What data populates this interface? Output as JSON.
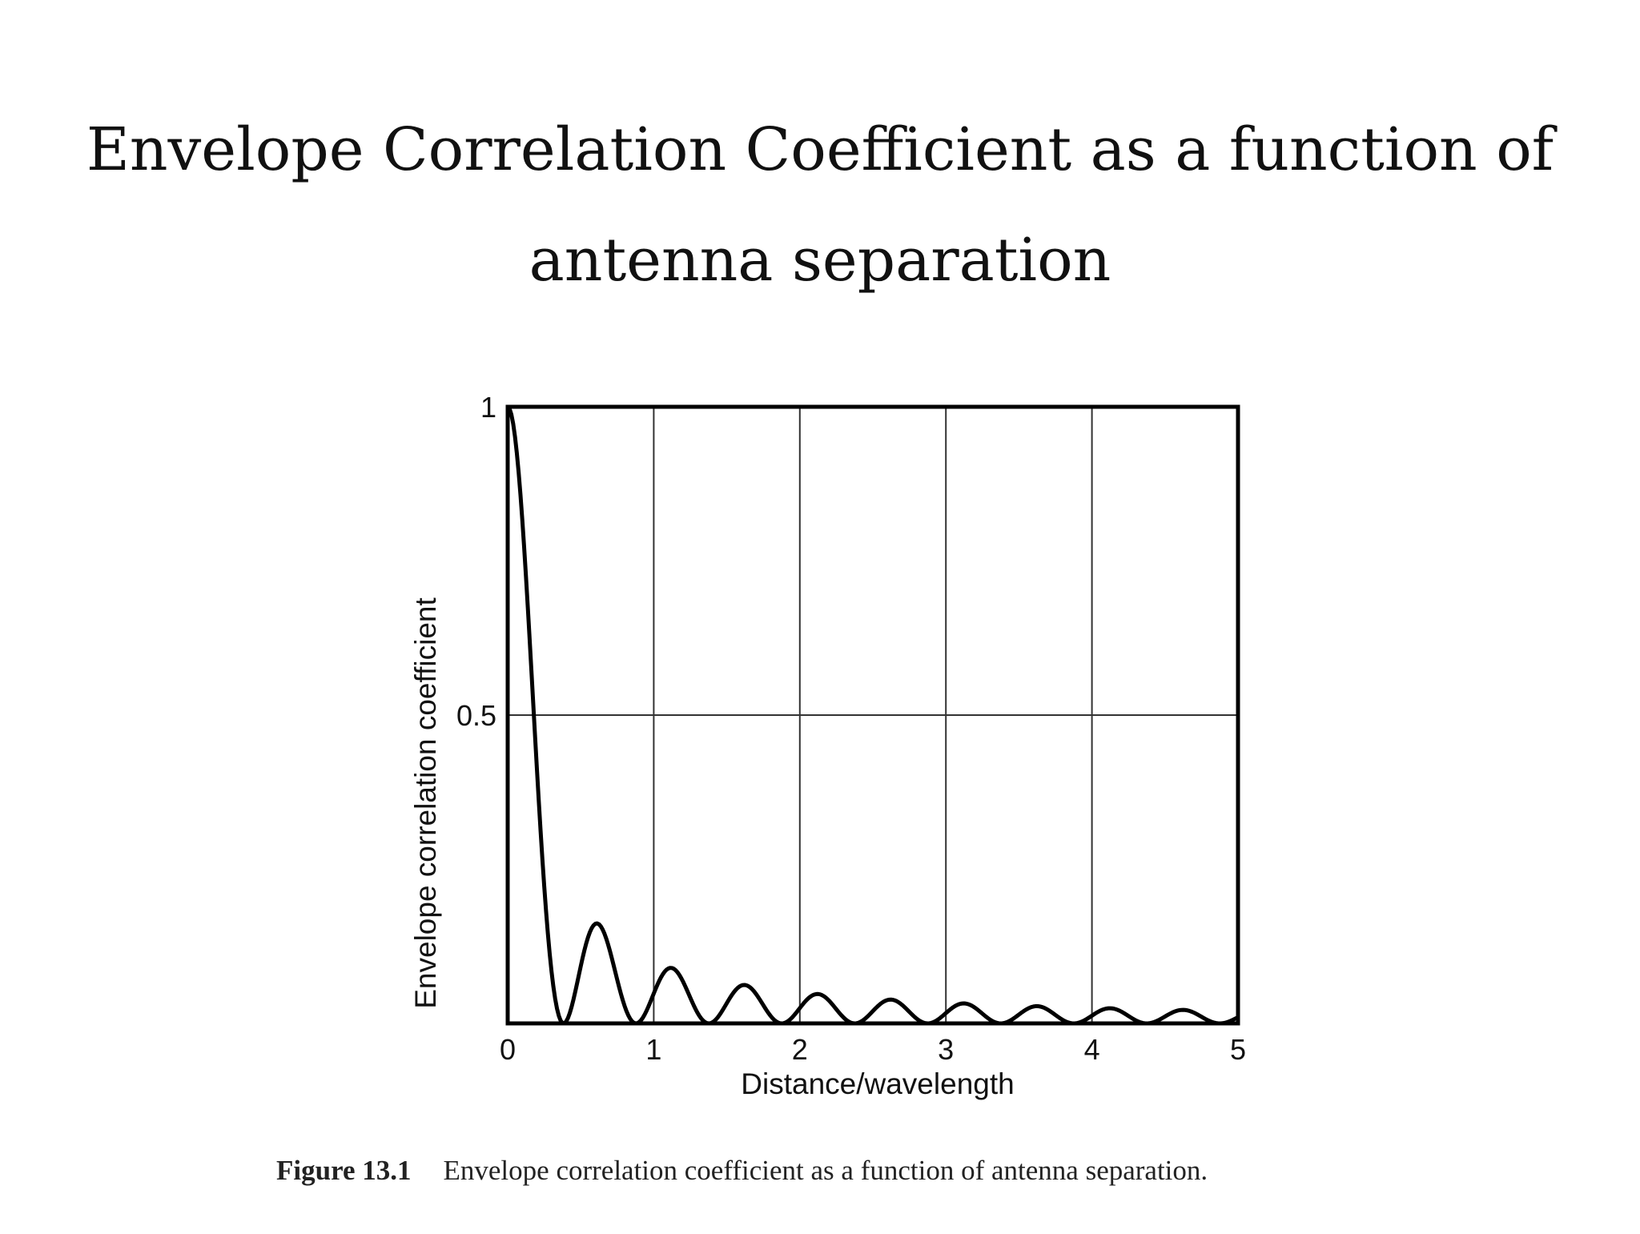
{
  "slide": {
    "title": "Envelope Correlation Coefficient as a function of antenna separation"
  },
  "caption": {
    "label": "Figure 13.1",
    "text": "Envelope correlation coefficient as a function of antenna separation."
  },
  "colors": {
    "line": "#000000",
    "grid": "#333333",
    "text": "#111111"
  },
  "chart_data": {
    "type": "line",
    "title": "",
    "xlabel": "Distance/wavelength",
    "ylabel": "Envelope correlation coefficient",
    "xlim": [
      0,
      5
    ],
    "ylim": [
      0,
      1
    ],
    "xticks": [
      "0",
      "1",
      "2",
      "3",
      "4",
      "5"
    ],
    "yticks": [
      "0.5",
      "1"
    ],
    "grid": true,
    "series": [
      {
        "function": "J0(2*pi*d)^2",
        "x_min": 0,
        "x_max": 5,
        "samples": 400
      }
    ]
  }
}
